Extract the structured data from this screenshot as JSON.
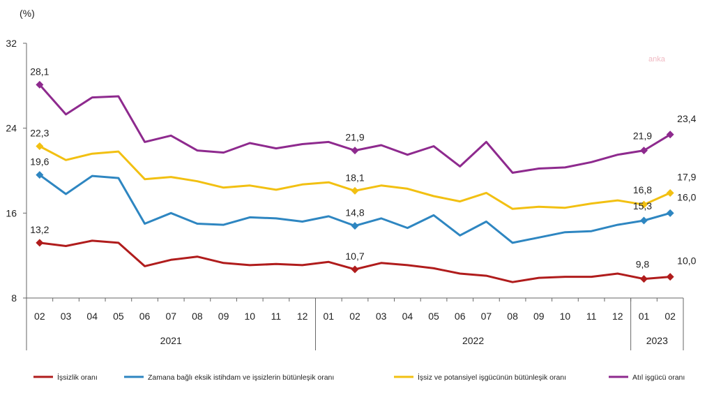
{
  "chart_data": {
    "type": "line",
    "unit_label": "(%)",
    "watermark": "anka",
    "yticks": [
      "8",
      "16",
      "24",
      "32"
    ],
    "ylim": [
      8,
      32
    ],
    "months": [
      "02",
      "03",
      "04",
      "05",
      "06",
      "07",
      "08",
      "09",
      "10",
      "11",
      "12",
      "01",
      "02",
      "03",
      "04",
      "05",
      "06",
      "07",
      "08",
      "09",
      "10",
      "11",
      "12",
      "01",
      "02"
    ],
    "years": [
      {
        "label": "2021",
        "start": 0,
        "end": 10
      },
      {
        "label": "2022",
        "start": 11,
        "end": 22
      },
      {
        "label": "2023",
        "start": 23,
        "end": 24
      }
    ],
    "series": [
      {
        "name": "İşsizlik oranı",
        "color": "#b01c1c",
        "values": [
          13.2,
          12.9,
          13.4,
          13.2,
          11.0,
          11.6,
          11.9,
          11.3,
          11.1,
          11.2,
          11.1,
          11.4,
          10.7,
          11.3,
          11.1,
          10.8,
          10.3,
          10.1,
          9.5,
          9.9,
          10.0,
          10.0,
          10.3,
          9.8,
          10.0
        ],
        "labels": [
          {
            "i": 0,
            "text": "13,2"
          },
          {
            "i": 12,
            "text": "10,7"
          },
          {
            "i": 23,
            "text": "9,8"
          },
          {
            "i": 24,
            "text": "10,0"
          }
        ]
      },
      {
        "name": "Zamana bağlı eksik istihdam ve işsizlerin bütünleşik oranı",
        "color": "#2e86c1",
        "values": [
          19.6,
          17.8,
          19.5,
          19.3,
          15.0,
          16.0,
          15.0,
          14.9,
          15.6,
          15.5,
          15.2,
          15.7,
          14.8,
          15.5,
          14.6,
          15.8,
          13.9,
          15.2,
          13.2,
          13.7,
          14.2,
          14.3,
          14.9,
          15.3,
          16.0
        ],
        "labels": [
          {
            "i": 0,
            "text": "19,6"
          },
          {
            "i": 12,
            "text": "14,8"
          },
          {
            "i": 23,
            "text": "15,3"
          },
          {
            "i": 24,
            "text": "16,0"
          }
        ]
      },
      {
        "name": "İşsiz ve potansiyel işgücünün bütünleşik oranı",
        "color": "#f2c012",
        "values": [
          22.3,
          21.0,
          21.6,
          21.8,
          19.2,
          19.4,
          19.0,
          18.4,
          18.6,
          18.2,
          18.7,
          18.9,
          18.1,
          18.6,
          18.3,
          17.6,
          17.1,
          17.9,
          16.4,
          16.6,
          16.5,
          16.9,
          17.2,
          16.8,
          17.9
        ],
        "labels": [
          {
            "i": 0,
            "text": "22,3"
          },
          {
            "i": 12,
            "text": "18,1"
          },
          {
            "i": 23,
            "text": "16,8"
          },
          {
            "i": 24,
            "text": "17,9"
          }
        ]
      },
      {
        "name": "Atıl işgücü oranı",
        "color": "#8e2a8e",
        "values": [
          28.1,
          25.3,
          26.9,
          27.0,
          22.7,
          23.3,
          21.9,
          21.7,
          22.6,
          22.1,
          22.5,
          22.7,
          21.9,
          22.4,
          21.5,
          22.3,
          20.4,
          22.7,
          19.8,
          20.2,
          20.3,
          20.8,
          21.5,
          21.9,
          23.4
        ],
        "labels": [
          {
            "i": 0,
            "text": "28,1"
          },
          {
            "i": 12,
            "text": "21,9"
          },
          {
            "i": 23,
            "text": "21,9"
          },
          {
            "i": 24,
            "text": "23,4"
          }
        ]
      }
    ],
    "legend_position": "bottom"
  }
}
